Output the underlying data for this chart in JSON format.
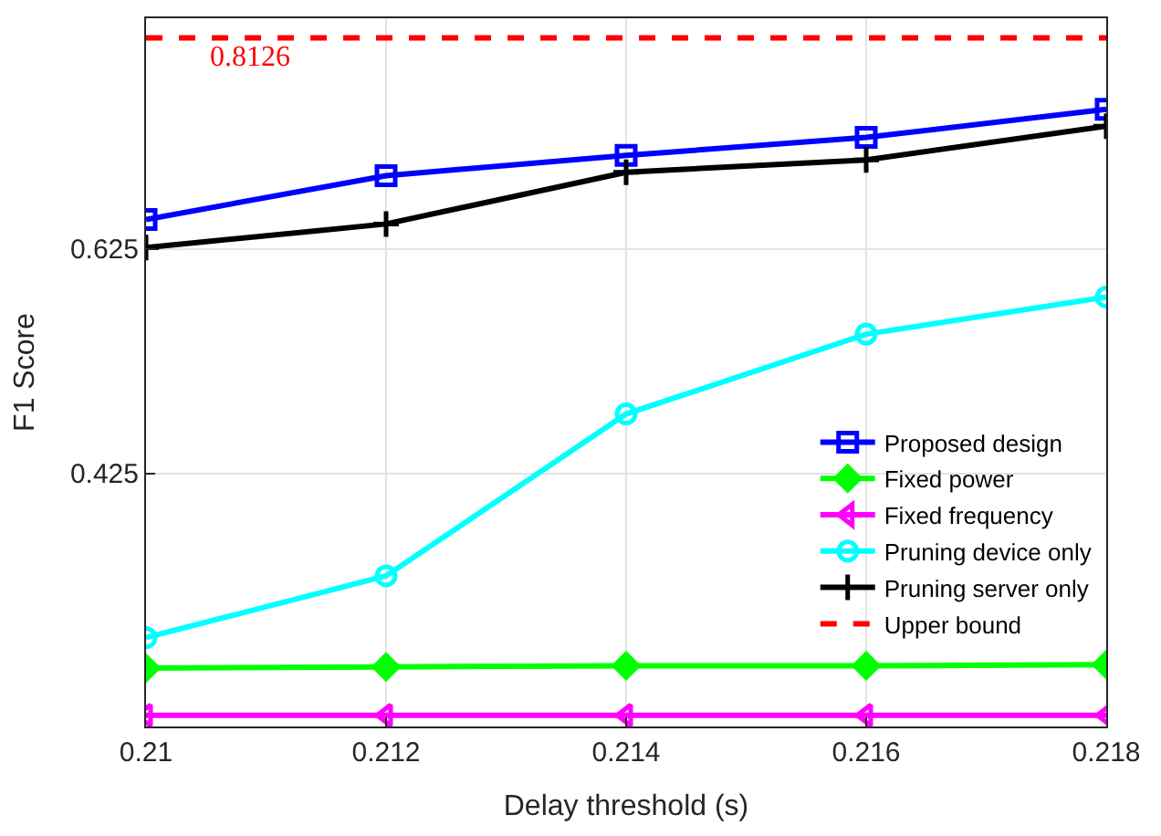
{
  "chart_data": {
    "type": "line",
    "xlabel": "Delay threshold (s)",
    "ylabel": "F1 Score",
    "x": [
      0.21,
      0.212,
      0.214,
      0.216,
      0.218
    ],
    "xlim": [
      0.21,
      0.218
    ],
    "xticks": [
      0.21,
      0.212,
      0.214,
      0.216,
      0.218
    ],
    "ylim": [
      0.2,
      0.83
    ],
    "yticks": [
      0.425,
      0.625
    ],
    "grid": true,
    "legend": "right",
    "series": [
      {
        "name": "Proposed design",
        "color": "#0000ff",
        "marker": "square",
        "values": [
          0.651,
          0.69,
          0.708,
          0.724,
          0.749
        ]
      },
      {
        "name": "Fixed power",
        "color": "#00ff00",
        "marker": "diamond",
        "values": [
          0.252,
          0.253,
          0.254,
          0.254,
          0.255
        ]
      },
      {
        "name": "Fixed frequency",
        "color": "#ff00ff",
        "marker": "triangle",
        "values": [
          0.21,
          0.21,
          0.21,
          0.21,
          0.21
        ]
      },
      {
        "name": "Pruning device only",
        "color": "#00ffff",
        "marker": "circle",
        "values": [
          0.279,
          0.334,
          0.478,
          0.549,
          0.582
        ]
      },
      {
        "name": "Pruning server only",
        "color": "#000000",
        "marker": "cross",
        "values": [
          0.626,
          0.647,
          0.693,
          0.704,
          0.734
        ]
      },
      {
        "name": "Upper bound",
        "color": "#ff0000",
        "marker": "none",
        "line_style": "dashed",
        "values": [
          0.8126,
          0.8126,
          0.8126,
          0.8126,
          0.8126
        ]
      }
    ],
    "annotations": [
      {
        "text": "0.8126",
        "x": 0.2105,
        "y": 0.8126
      }
    ]
  }
}
